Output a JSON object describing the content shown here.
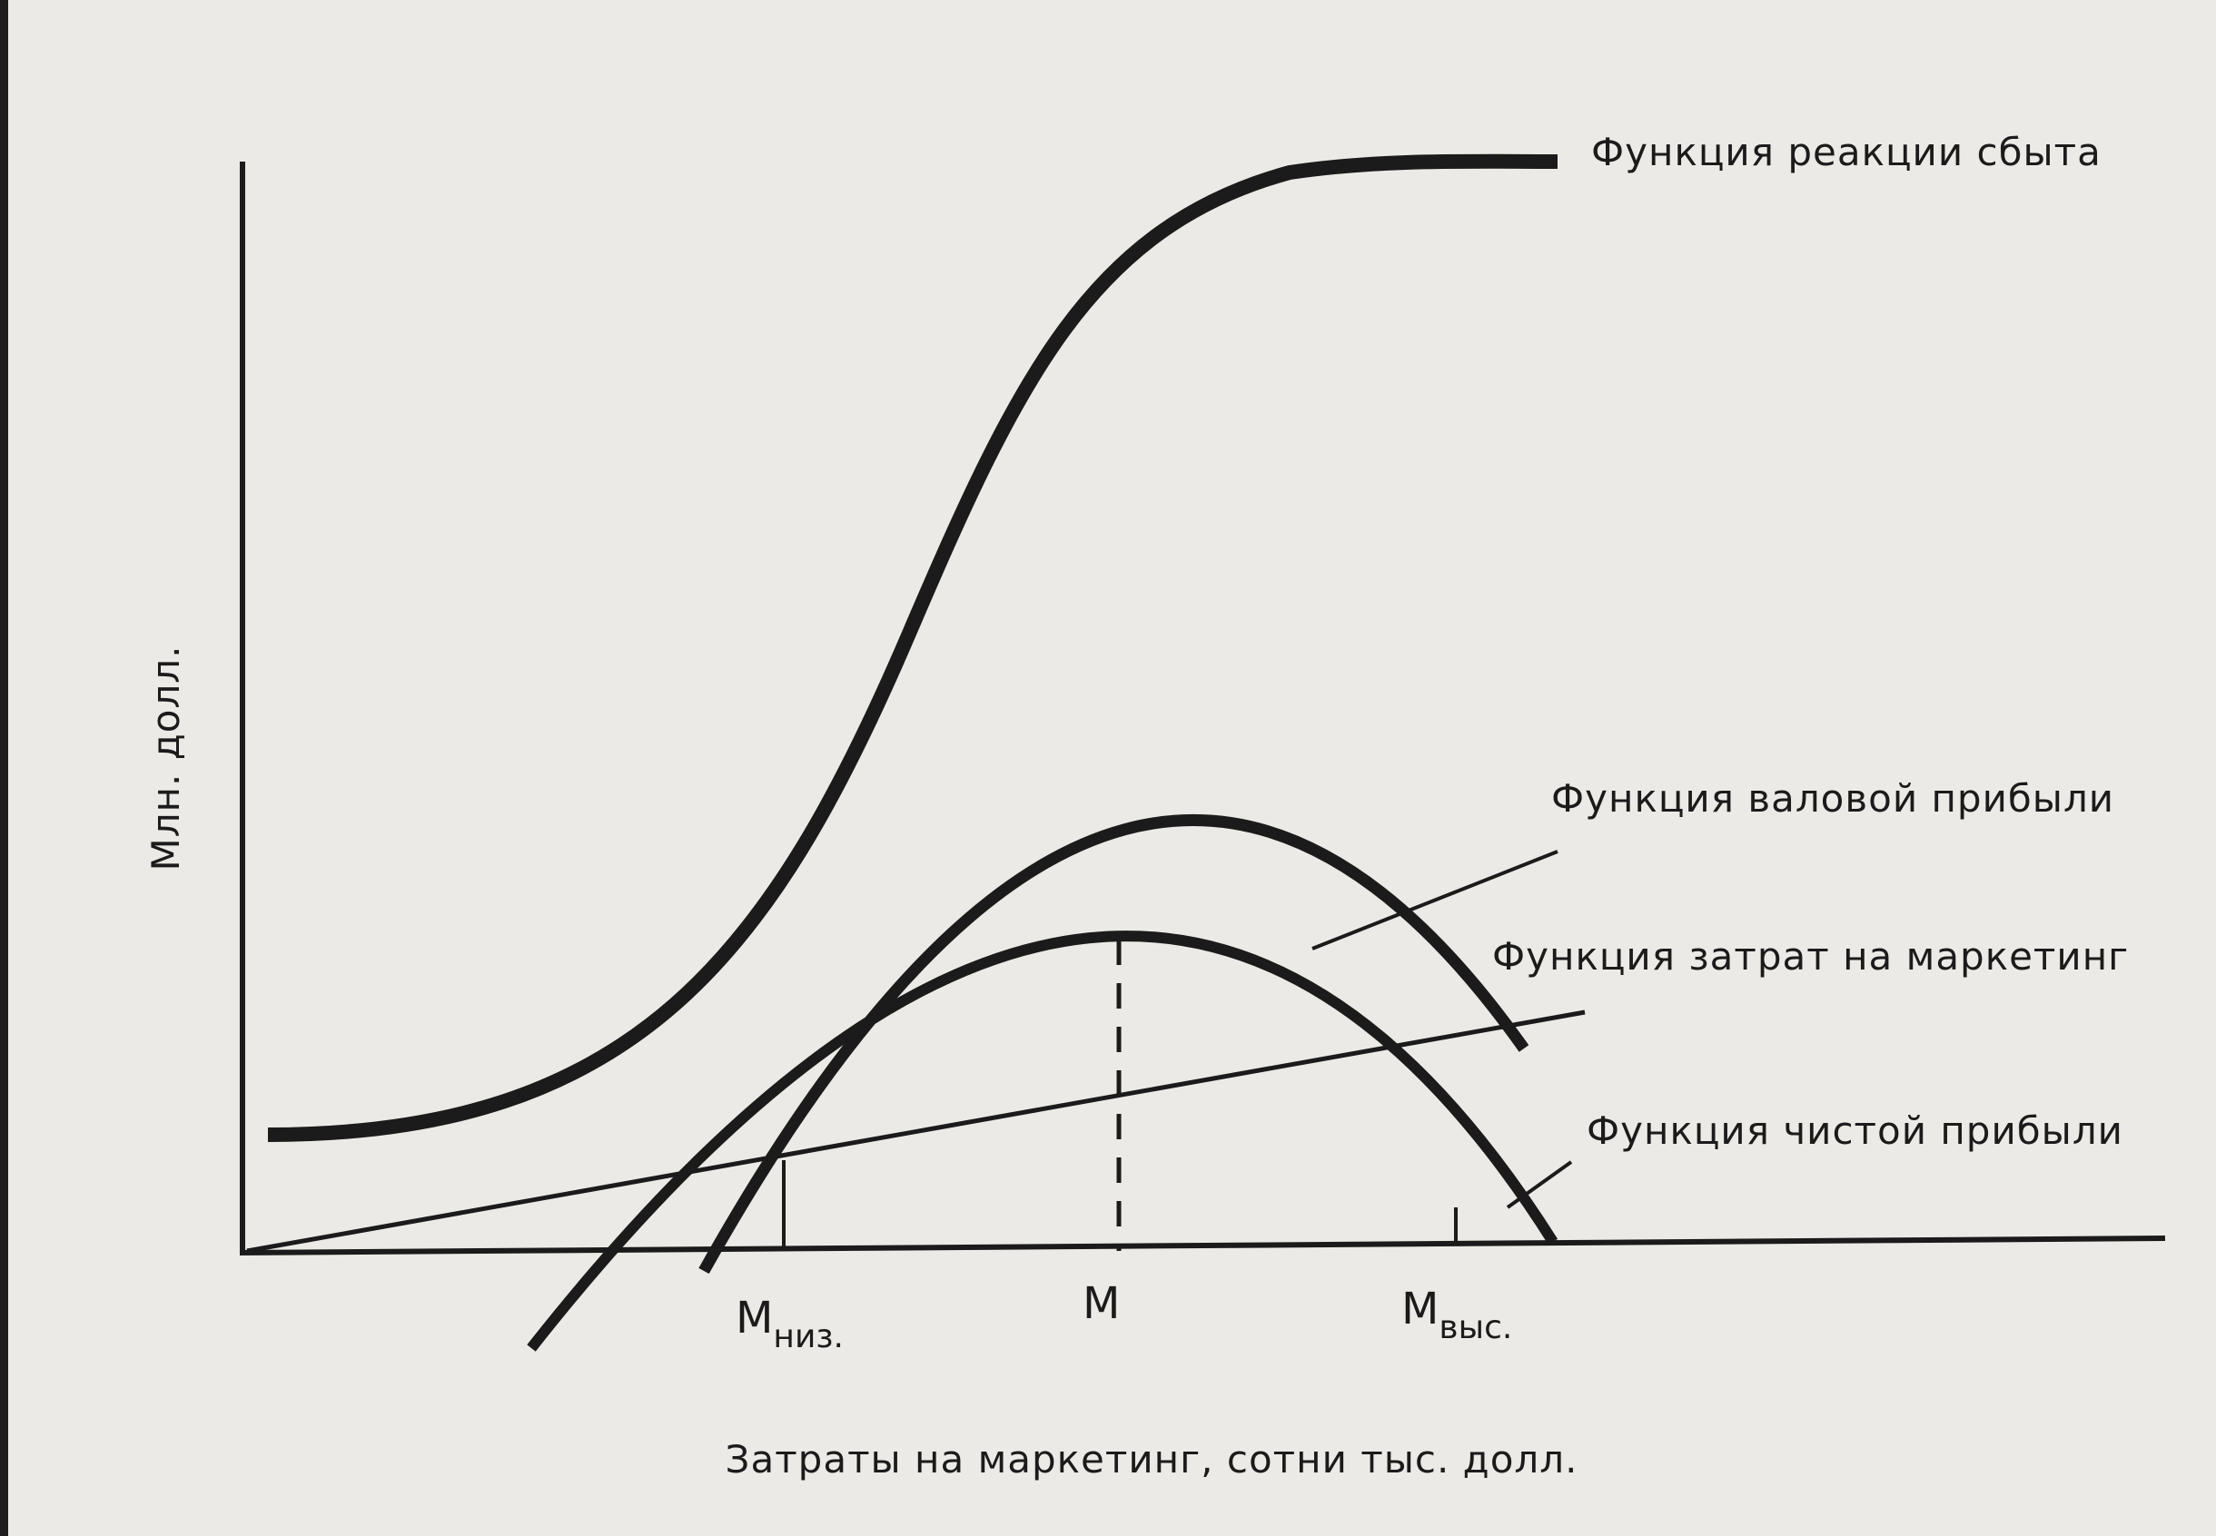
{
  "diagram": {
    "y_axis_label": "Млн. долл.",
    "x_axis_label": "Затраты на маркетинг, сотни тыс. долл.",
    "curve_labels": {
      "sales_response": "Функция реакции сбыта",
      "gross_profit": "Функция валовой прибыли",
      "marketing_cost": "Функция затрат на маркетинг",
      "net_profit": "Функция чистой прибыли"
    },
    "x_ticks": {
      "low_main": "М",
      "low_sub": "низ.",
      "optimum": "М",
      "high_main": "М",
      "high_sub": "выс."
    }
  },
  "colors": {
    "ink": "#1b1b1b",
    "paper": "#eceae6"
  }
}
